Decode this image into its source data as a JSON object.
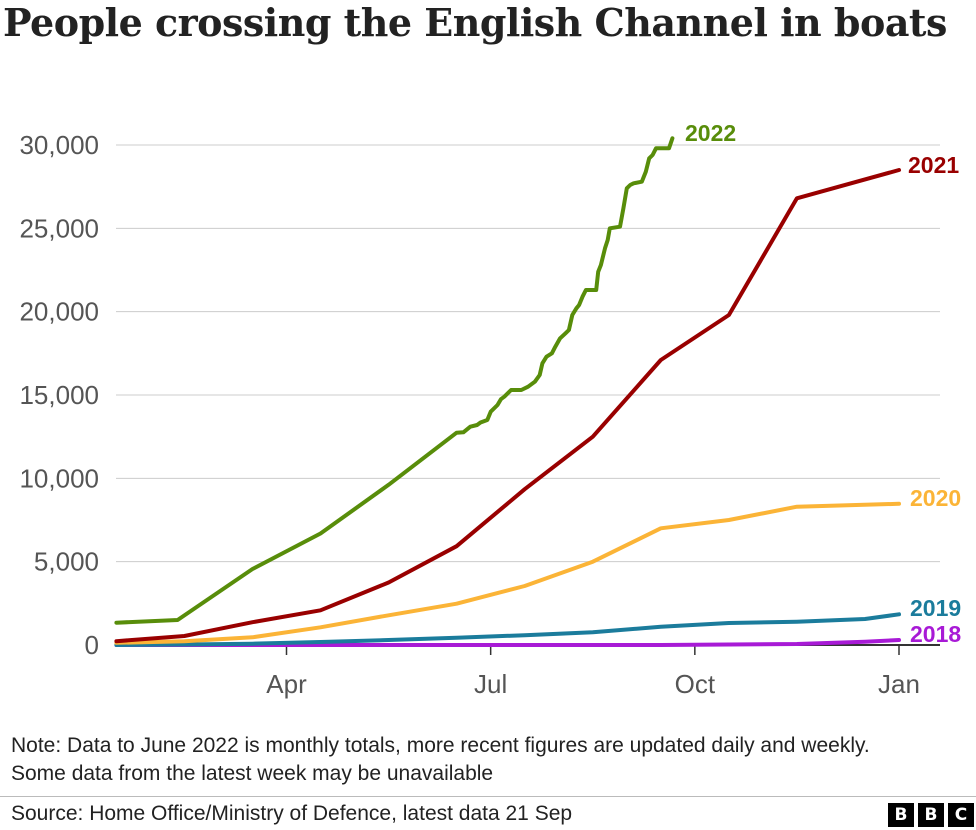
{
  "title": "People crossing the English Channel in boats",
  "note": "Note: Data to June 2022 is monthly totals, more recent figures are updated daily and weekly. Some data from the latest week may be unavailable",
  "source": "Source: Home Office/Ministry of Defence, latest data 21 Sep",
  "logo": [
    "B",
    "B",
    "C"
  ],
  "chart_data": {
    "type": "line",
    "title": "People crossing the English Channel in boats",
    "xlabel": "",
    "ylabel": "",
    "x_ticks": [
      {
        "label": "Apr",
        "month": 3
      },
      {
        "label": "Jul",
        "month": 6
      },
      {
        "label": "Oct",
        "month": 9
      },
      {
        "label": "Jan",
        "month": 12
      }
    ],
    "y_ticks": [
      {
        "label": "0",
        "value": 0
      },
      {
        "label": "5,000",
        "value": 5000
      },
      {
        "label": "10,000",
        "value": 10000
      },
      {
        "label": "15,000",
        "value": 15000
      },
      {
        "label": "20,000",
        "value": 20000
      },
      {
        "label": "25,000",
        "value": 25000
      },
      {
        "label": "30,000",
        "value": 30000
      }
    ],
    "xlim_months": [
      0.5,
      12.4
    ],
    "ylim": [
      0,
      31000
    ],
    "grid": "horizontal",
    "series": [
      {
        "name": "2018",
        "color": "#a81ad6",
        "points": [
          [
            0.5,
            0
          ],
          [
            1.5,
            0
          ],
          [
            2.5,
            0
          ],
          [
            3.5,
            0
          ],
          [
            4.5,
            0
          ],
          [
            5.5,
            0
          ],
          [
            6.5,
            0
          ],
          [
            7.5,
            0
          ],
          [
            8.5,
            0
          ],
          [
            9.5,
            30
          ],
          [
            10.5,
            60
          ],
          [
            11.5,
            190
          ],
          [
            12,
            300
          ]
        ]
      },
      {
        "name": "2019",
        "color": "#1b7c9c",
        "points": [
          [
            0.5,
            0
          ],
          [
            1.5,
            30
          ],
          [
            2.5,
            80
          ],
          [
            3.5,
            180
          ],
          [
            4.5,
            300
          ],
          [
            5.5,
            430
          ],
          [
            6.5,
            590
          ],
          [
            7.5,
            760
          ],
          [
            8.5,
            1100
          ],
          [
            9.5,
            1320
          ],
          [
            10.5,
            1400
          ],
          [
            11.5,
            1560
          ],
          [
            12,
            1840
          ]
        ]
      },
      {
        "name": "2020",
        "color": "#fbb437",
        "points": [
          [
            0.5,
            130
          ],
          [
            1.5,
            220
          ],
          [
            2.5,
            460
          ],
          [
            3.5,
            1060
          ],
          [
            4.5,
            1780
          ],
          [
            5.5,
            2480
          ],
          [
            6.5,
            3540
          ],
          [
            7.5,
            5000
          ],
          [
            8.5,
            7000
          ],
          [
            9.5,
            7500
          ],
          [
            10.5,
            8300
          ],
          [
            12,
            8470
          ]
        ]
      },
      {
        "name": "2021",
        "color": "#990000",
        "points": [
          [
            0.5,
            230
          ],
          [
            1.5,
            540
          ],
          [
            2.5,
            1370
          ],
          [
            3.5,
            2080
          ],
          [
            4.5,
            3750
          ],
          [
            5.5,
            5930
          ],
          [
            6.5,
            9350
          ],
          [
            7.5,
            12500
          ],
          [
            8.5,
            17100
          ],
          [
            9.5,
            19800
          ],
          [
            10.5,
            26800
          ],
          [
            12,
            28500
          ]
        ]
      },
      {
        "name": "2022",
        "color": "#588d0a",
        "points": [
          [
            0.5,
            1340
          ],
          [
            1.4,
            1500
          ],
          [
            2.5,
            4560
          ],
          [
            3.5,
            6690
          ],
          [
            4.5,
            9610
          ],
          [
            5.5,
            12740
          ],
          [
            5.6,
            12760
          ],
          [
            5.7,
            13100
          ],
          [
            5.8,
            13200
          ],
          [
            5.85,
            13350
          ],
          [
            5.95,
            13500
          ],
          [
            6.0,
            14000
          ],
          [
            6.1,
            14400
          ],
          [
            6.15,
            14750
          ],
          [
            6.2,
            14900
          ],
          [
            6.3,
            15300
          ],
          [
            6.45,
            15300
          ],
          [
            6.55,
            15500
          ],
          [
            6.65,
            15800
          ],
          [
            6.72,
            16200
          ],
          [
            6.76,
            16900
          ],
          [
            6.82,
            17300
          ],
          [
            6.9,
            17500
          ],
          [
            6.95,
            17900
          ],
          [
            7.02,
            18400
          ],
          [
            7.1,
            18700
          ],
          [
            7.15,
            18900
          ],
          [
            7.2,
            19800
          ],
          [
            7.26,
            20200
          ],
          [
            7.3,
            20400
          ],
          [
            7.35,
            20900
          ],
          [
            7.4,
            21300
          ],
          [
            7.55,
            21300
          ],
          [
            7.58,
            22400
          ],
          [
            7.62,
            22800
          ],
          [
            7.68,
            23800
          ],
          [
            7.72,
            24300
          ],
          [
            7.75,
            25000
          ],
          [
            7.9,
            25100
          ],
          [
            7.95,
            26200
          ],
          [
            8.0,
            27400
          ],
          [
            8.05,
            27600
          ],
          [
            8.1,
            27700
          ],
          [
            8.22,
            27800
          ],
          [
            8.28,
            28400
          ],
          [
            8.33,
            29200
          ],
          [
            8.38,
            29400
          ],
          [
            8.43,
            29800
          ],
          [
            8.62,
            29800
          ],
          [
            8.67,
            30400
          ]
        ]
      }
    ]
  }
}
